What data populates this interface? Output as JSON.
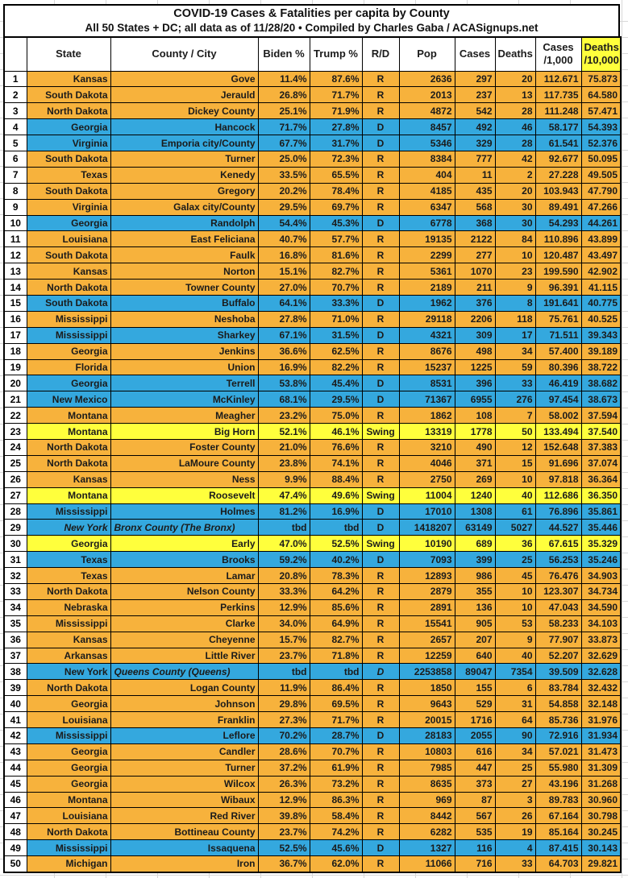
{
  "title": "COVID-19 Cases & Fatalities per capita by County",
  "subtitle": "All 50 States + DC; all data as of 11/28/20  • Compiled by Charles Gaba / ACASignups.net",
  "colors": {
    "republican": "#F7B23C",
    "democrat": "#34A8DE",
    "swing": "#FFFF3C",
    "header_highlight": "#FFFF3C"
  },
  "columns": [
    {
      "line1": ""
    },
    {
      "line1": "State"
    },
    {
      "line1": "County / City"
    },
    {
      "line1": "Biden %"
    },
    {
      "line1": "Trump %"
    },
    {
      "line1": "R/D"
    },
    {
      "line1": "Pop"
    },
    {
      "line1": "Cases"
    },
    {
      "line1": "Deaths"
    },
    {
      "line1": "Cases",
      "line2": "/1,000"
    },
    {
      "line1": "Deaths",
      "line2": "/10,000"
    }
  ],
  "rows": [
    {
      "rank": "1",
      "state": "Kansas",
      "county": "Gove",
      "biden": "11.4%",
      "trump": "87.6%",
      "rd": "R",
      "pop": "2636",
      "cases": "297",
      "deaths": "20",
      "cases_per_1k": "112.671",
      "deaths_per_10k": "75.873"
    },
    {
      "rank": "2",
      "state": "South Dakota",
      "county": "Jerauld",
      "biden": "26.8%",
      "trump": "71.7%",
      "rd": "R",
      "pop": "2013",
      "cases": "237",
      "deaths": "13",
      "cases_per_1k": "117.735",
      "deaths_per_10k": "64.580"
    },
    {
      "rank": "3",
      "state": "North Dakota",
      "county": "Dickey County",
      "biden": "25.1%",
      "trump": "71.9%",
      "rd": "R",
      "pop": "4872",
      "cases": "542",
      "deaths": "28",
      "cases_per_1k": "111.248",
      "deaths_per_10k": "57.471"
    },
    {
      "rank": "4",
      "state": "Georgia",
      "county": "Hancock",
      "biden": "71.7%",
      "trump": "27.8%",
      "rd": "D",
      "pop": "8457",
      "cases": "492",
      "deaths": "46",
      "cases_per_1k": "58.177",
      "deaths_per_10k": "54.393"
    },
    {
      "rank": "5",
      "state": "Virginia",
      "county": "Emporia city/County",
      "biden": "67.7%",
      "trump": "31.7%",
      "rd": "D",
      "pop": "5346",
      "cases": "329",
      "deaths": "28",
      "cases_per_1k": "61.541",
      "deaths_per_10k": "52.376"
    },
    {
      "rank": "6",
      "state": "South Dakota",
      "county": "Turner",
      "biden": "25.0%",
      "trump": "72.3%",
      "rd": "R",
      "pop": "8384",
      "cases": "777",
      "deaths": "42",
      "cases_per_1k": "92.677",
      "deaths_per_10k": "50.095"
    },
    {
      "rank": "7",
      "state": "Texas",
      "county": "Kenedy",
      "biden": "33.5%",
      "trump": "65.5%",
      "rd": "R",
      "pop": "404",
      "cases": "11",
      "deaths": "2",
      "cases_per_1k": "27.228",
      "deaths_per_10k": "49.505"
    },
    {
      "rank": "8",
      "state": "South Dakota",
      "county": "Gregory",
      "biden": "20.2%",
      "trump": "78.4%",
      "rd": "R",
      "pop": "4185",
      "cases": "435",
      "deaths": "20",
      "cases_per_1k": "103.943",
      "deaths_per_10k": "47.790"
    },
    {
      "rank": "9",
      "state": "Virginia",
      "county": "Galax city/County",
      "biden": "29.5%",
      "trump": "69.7%",
      "rd": "R",
      "pop": "6347",
      "cases": "568",
      "deaths": "30",
      "cases_per_1k": "89.491",
      "deaths_per_10k": "47.266"
    },
    {
      "rank": "10",
      "state": "Georgia",
      "county": "Randolph",
      "biden": "54.4%",
      "trump": "45.3%",
      "rd": "D",
      "pop": "6778",
      "cases": "368",
      "deaths": "30",
      "cases_per_1k": "54.293",
      "deaths_per_10k": "44.261"
    },
    {
      "rank": "11",
      "state": "Louisiana",
      "county": "East Feliciana",
      "biden": "40.7%",
      "trump": "57.7%",
      "rd": "R",
      "pop": "19135",
      "cases": "2122",
      "deaths": "84",
      "cases_per_1k": "110.896",
      "deaths_per_10k": "43.899"
    },
    {
      "rank": "12",
      "state": "South Dakota",
      "county": "Faulk",
      "biden": "16.8%",
      "trump": "81.6%",
      "rd": "R",
      "pop": "2299",
      "cases": "277",
      "deaths": "10",
      "cases_per_1k": "120.487",
      "deaths_per_10k": "43.497"
    },
    {
      "rank": "13",
      "state": "Kansas",
      "county": "Norton",
      "biden": "15.1%",
      "trump": "82.7%",
      "rd": "R",
      "pop": "5361",
      "cases": "1070",
      "deaths": "23",
      "cases_per_1k": "199.590",
      "deaths_per_10k": "42.902"
    },
    {
      "rank": "14",
      "state": "North Dakota",
      "county": "Towner County",
      "biden": "27.0%",
      "trump": "70.7%",
      "rd": "R",
      "pop": "2189",
      "cases": "211",
      "deaths": "9",
      "cases_per_1k": "96.391",
      "deaths_per_10k": "41.115"
    },
    {
      "rank": "15",
      "state": "South Dakota",
      "county": "Buffalo",
      "biden": "64.1%",
      "trump": "33.3%",
      "rd": "D",
      "pop": "1962",
      "cases": "376",
      "deaths": "8",
      "cases_per_1k": "191.641",
      "deaths_per_10k": "40.775"
    },
    {
      "rank": "16",
      "state": "Mississippi",
      "county": "Neshoba",
      "biden": "27.8%",
      "trump": "71.0%",
      "rd": "R",
      "pop": "29118",
      "cases": "2206",
      "deaths": "118",
      "cases_per_1k": "75.761",
      "deaths_per_10k": "40.525"
    },
    {
      "rank": "17",
      "state": "Mississippi",
      "county": "Sharkey",
      "biden": "67.1%",
      "trump": "31.5%",
      "rd": "D",
      "pop": "4321",
      "cases": "309",
      "deaths": "17",
      "cases_per_1k": "71.511",
      "deaths_per_10k": "39.343"
    },
    {
      "rank": "18",
      "state": "Georgia",
      "county": "Jenkins",
      "biden": "36.6%",
      "trump": "62.5%",
      "rd": "R",
      "pop": "8676",
      "cases": "498",
      "deaths": "34",
      "cases_per_1k": "57.400",
      "deaths_per_10k": "39.189"
    },
    {
      "rank": "19",
      "state": "Florida",
      "county": "Union",
      "biden": "16.9%",
      "trump": "82.2%",
      "rd": "R",
      "pop": "15237",
      "cases": "1225",
      "deaths": "59",
      "cases_per_1k": "80.396",
      "deaths_per_10k": "38.722"
    },
    {
      "rank": "20",
      "state": "Georgia",
      "county": "Terrell",
      "biden": "53.8%",
      "trump": "45.4%",
      "rd": "D",
      "pop": "8531",
      "cases": "396",
      "deaths": "33",
      "cases_per_1k": "46.419",
      "deaths_per_10k": "38.682"
    },
    {
      "rank": "21",
      "state": "New Mexico",
      "county": "McKinley",
      "biden": "68.1%",
      "trump": "29.5%",
      "rd": "D",
      "pop": "71367",
      "cases": "6955",
      "deaths": "276",
      "cases_per_1k": "97.454",
      "deaths_per_10k": "38.673"
    },
    {
      "rank": "22",
      "state": "Montana",
      "county": "Meagher",
      "biden": "23.2%",
      "trump": "75.0%",
      "rd": "R",
      "pop": "1862",
      "cases": "108",
      "deaths": "7",
      "cases_per_1k": "58.002",
      "deaths_per_10k": "37.594"
    },
    {
      "rank": "23",
      "state": "Montana",
      "county": "Big Horn",
      "biden": "52.1%",
      "trump": "46.1%",
      "rd": "Swing",
      "pop": "13319",
      "cases": "1778",
      "deaths": "50",
      "cases_per_1k": "133.494",
      "deaths_per_10k": "37.540"
    },
    {
      "rank": "24",
      "state": "North Dakota",
      "county": "Foster County",
      "biden": "21.0%",
      "trump": "76.6%",
      "rd": "R",
      "pop": "3210",
      "cases": "490",
      "deaths": "12",
      "cases_per_1k": "152.648",
      "deaths_per_10k": "37.383"
    },
    {
      "rank": "25",
      "state": "North Dakota",
      "county": "LaMoure County",
      "biden": "23.8%",
      "trump": "74.1%",
      "rd": "R",
      "pop": "4046",
      "cases": "371",
      "deaths": "15",
      "cases_per_1k": "91.696",
      "deaths_per_10k": "37.074"
    },
    {
      "rank": "26",
      "state": "Kansas",
      "county": "Ness",
      "biden": "9.9%",
      "trump": "88.4%",
      "rd": "R",
      "pop": "2750",
      "cases": "269",
      "deaths": "10",
      "cases_per_1k": "97.818",
      "deaths_per_10k": "36.364"
    },
    {
      "rank": "27",
      "state": "Montana",
      "county": "Roosevelt",
      "biden": "47.4%",
      "trump": "49.6%",
      "rd": "Swing",
      "pop": "11004",
      "cases": "1240",
      "deaths": "40",
      "cases_per_1k": "112.686",
      "deaths_per_10k": "36.350"
    },
    {
      "rank": "28",
      "state": "Mississippi",
      "county": "Holmes",
      "biden": "81.2%",
      "trump": "16.9%",
      "rd": "D",
      "pop": "17010",
      "cases": "1308",
      "deaths": "61",
      "cases_per_1k": "76.896",
      "deaths_per_10k": "35.861"
    },
    {
      "rank": "29",
      "state": "New York",
      "county": "Bronx County (The Bronx)",
      "biden": "tbd",
      "trump": "tbd",
      "rd": "D",
      "pop": "1418207",
      "cases": "63149",
      "deaths": "5027",
      "cases_per_1k": "44.527",
      "deaths_per_10k": "35.446",
      "state_italic": true,
      "county_italic": true,
      "county_left": true
    },
    {
      "rank": "30",
      "state": "Georgia",
      "county": "Early",
      "biden": "47.0%",
      "trump": "52.5%",
      "rd": "Swing",
      "pop": "10190",
      "cases": "689",
      "deaths": "36",
      "cases_per_1k": "67.615",
      "deaths_per_10k": "35.329"
    },
    {
      "rank": "31",
      "state": "Texas",
      "county": "Brooks",
      "biden": "59.2%",
      "trump": "40.2%",
      "rd": "D",
      "pop": "7093",
      "cases": "399",
      "deaths": "25",
      "cases_per_1k": "56.253",
      "deaths_per_10k": "35.246"
    },
    {
      "rank": "32",
      "state": "Texas",
      "county": "Lamar",
      "biden": "20.8%",
      "trump": "78.3%",
      "rd": "R",
      "pop": "12893",
      "cases": "986",
      "deaths": "45",
      "cases_per_1k": "76.476",
      "deaths_per_10k": "34.903"
    },
    {
      "rank": "33",
      "state": "North Dakota",
      "county": "Nelson County",
      "biden": "33.3%",
      "trump": "64.2%",
      "rd": "R",
      "pop": "2879",
      "cases": "355",
      "deaths": "10",
      "cases_per_1k": "123.307",
      "deaths_per_10k": "34.734"
    },
    {
      "rank": "34",
      "state": "Nebraska",
      "county": "Perkins",
      "biden": "12.9%",
      "trump": "85.6%",
      "rd": "R",
      "pop": "2891",
      "cases": "136",
      "deaths": "10",
      "cases_per_1k": "47.043",
      "deaths_per_10k": "34.590"
    },
    {
      "rank": "35",
      "state": "Mississippi",
      "county": "Clarke",
      "biden": "34.0%",
      "trump": "64.9%",
      "rd": "R",
      "pop": "15541",
      "cases": "905",
      "deaths": "53",
      "cases_per_1k": "58.233",
      "deaths_per_10k": "34.103"
    },
    {
      "rank": "36",
      "state": "Kansas",
      "county": "Cheyenne",
      "biden": "15.7%",
      "trump": "82.7%",
      "rd": "R",
      "pop": "2657",
      "cases": "207",
      "deaths": "9",
      "cases_per_1k": "77.907",
      "deaths_per_10k": "33.873"
    },
    {
      "rank": "37",
      "state": "Arkansas",
      "county": "Little River",
      "biden": "23.7%",
      "trump": "71.8%",
      "rd": "R",
      "pop": "12259",
      "cases": "640",
      "deaths": "40",
      "cases_per_1k": "52.207",
      "deaths_per_10k": "32.629"
    },
    {
      "rank": "38",
      "state": "New York",
      "county": "Queens County (Queens)",
      "biden": "tbd",
      "trump": "tbd",
      "rd": "D",
      "pop": "2253858",
      "cases": "89047",
      "deaths": "7354",
      "cases_per_1k": "39.509",
      "deaths_per_10k": "32.628",
      "county_italic": true,
      "county_left": true,
      "rd_italic": true
    },
    {
      "rank": "39",
      "state": "North Dakota",
      "county": "Logan County",
      "biden": "11.9%",
      "trump": "86.4%",
      "rd": "R",
      "pop": "1850",
      "cases": "155",
      "deaths": "6",
      "cases_per_1k": "83.784",
      "deaths_per_10k": "32.432"
    },
    {
      "rank": "40",
      "state": "Georgia",
      "county": "Johnson",
      "biden": "29.8%",
      "trump": "69.5%",
      "rd": "R",
      "pop": "9643",
      "cases": "529",
      "deaths": "31",
      "cases_per_1k": "54.858",
      "deaths_per_10k": "32.148"
    },
    {
      "rank": "41",
      "state": "Louisiana",
      "county": "Franklin",
      "biden": "27.3%",
      "trump": "71.7%",
      "rd": "R",
      "pop": "20015",
      "cases": "1716",
      "deaths": "64",
      "cases_per_1k": "85.736",
      "deaths_per_10k": "31.976"
    },
    {
      "rank": "42",
      "state": "Mississippi",
      "county": "Leflore",
      "biden": "70.2%",
      "trump": "28.7%",
      "rd": "D",
      "pop": "28183",
      "cases": "2055",
      "deaths": "90",
      "cases_per_1k": "72.916",
      "deaths_per_10k": "31.934"
    },
    {
      "rank": "43",
      "state": "Georgia",
      "county": "Candler",
      "biden": "28.6%",
      "trump": "70.7%",
      "rd": "R",
      "pop": "10803",
      "cases": "616",
      "deaths": "34",
      "cases_per_1k": "57.021",
      "deaths_per_10k": "31.473"
    },
    {
      "rank": "44",
      "state": "Georgia",
      "county": "Turner",
      "biden": "37.2%",
      "trump": "61.9%",
      "rd": "R",
      "pop": "7985",
      "cases": "447",
      "deaths": "25",
      "cases_per_1k": "55.980",
      "deaths_per_10k": "31.309"
    },
    {
      "rank": "45",
      "state": "Georgia",
      "county": "Wilcox",
      "biden": "26.3%",
      "trump": "73.2%",
      "rd": "R",
      "pop": "8635",
      "cases": "373",
      "deaths": "27",
      "cases_per_1k": "43.196",
      "deaths_per_10k": "31.268"
    },
    {
      "rank": "46",
      "state": "Montana",
      "county": "Wibaux",
      "biden": "12.9%",
      "trump": "86.3%",
      "rd": "R",
      "pop": "969",
      "cases": "87",
      "deaths": "3",
      "cases_per_1k": "89.783",
      "deaths_per_10k": "30.960"
    },
    {
      "rank": "47",
      "state": "Louisiana",
      "county": "Red River",
      "biden": "39.8%",
      "trump": "58.4%",
      "rd": "R",
      "pop": "8442",
      "cases": "567",
      "deaths": "26",
      "cases_per_1k": "67.164",
      "deaths_per_10k": "30.798"
    },
    {
      "rank": "48",
      "state": "North Dakota",
      "county": "Bottineau County",
      "biden": "23.7%",
      "trump": "74.2%",
      "rd": "R",
      "pop": "6282",
      "cases": "535",
      "deaths": "19",
      "cases_per_1k": "85.164",
      "deaths_per_10k": "30.245"
    },
    {
      "rank": "49",
      "state": "Mississippi",
      "county": "Issaquena",
      "biden": "52.5%",
      "trump": "45.6%",
      "rd": "D",
      "pop": "1327",
      "cases": "116",
      "deaths": "4",
      "cases_per_1k": "87.415",
      "deaths_per_10k": "30.143"
    },
    {
      "rank": "50",
      "state": "Michigan",
      "county": "Iron",
      "biden": "36.7%",
      "trump": "62.0%",
      "rd": "R",
      "pop": "11066",
      "cases": "716",
      "deaths": "33",
      "cases_per_1k": "64.703",
      "deaths_per_10k": "29.821"
    }
  ]
}
